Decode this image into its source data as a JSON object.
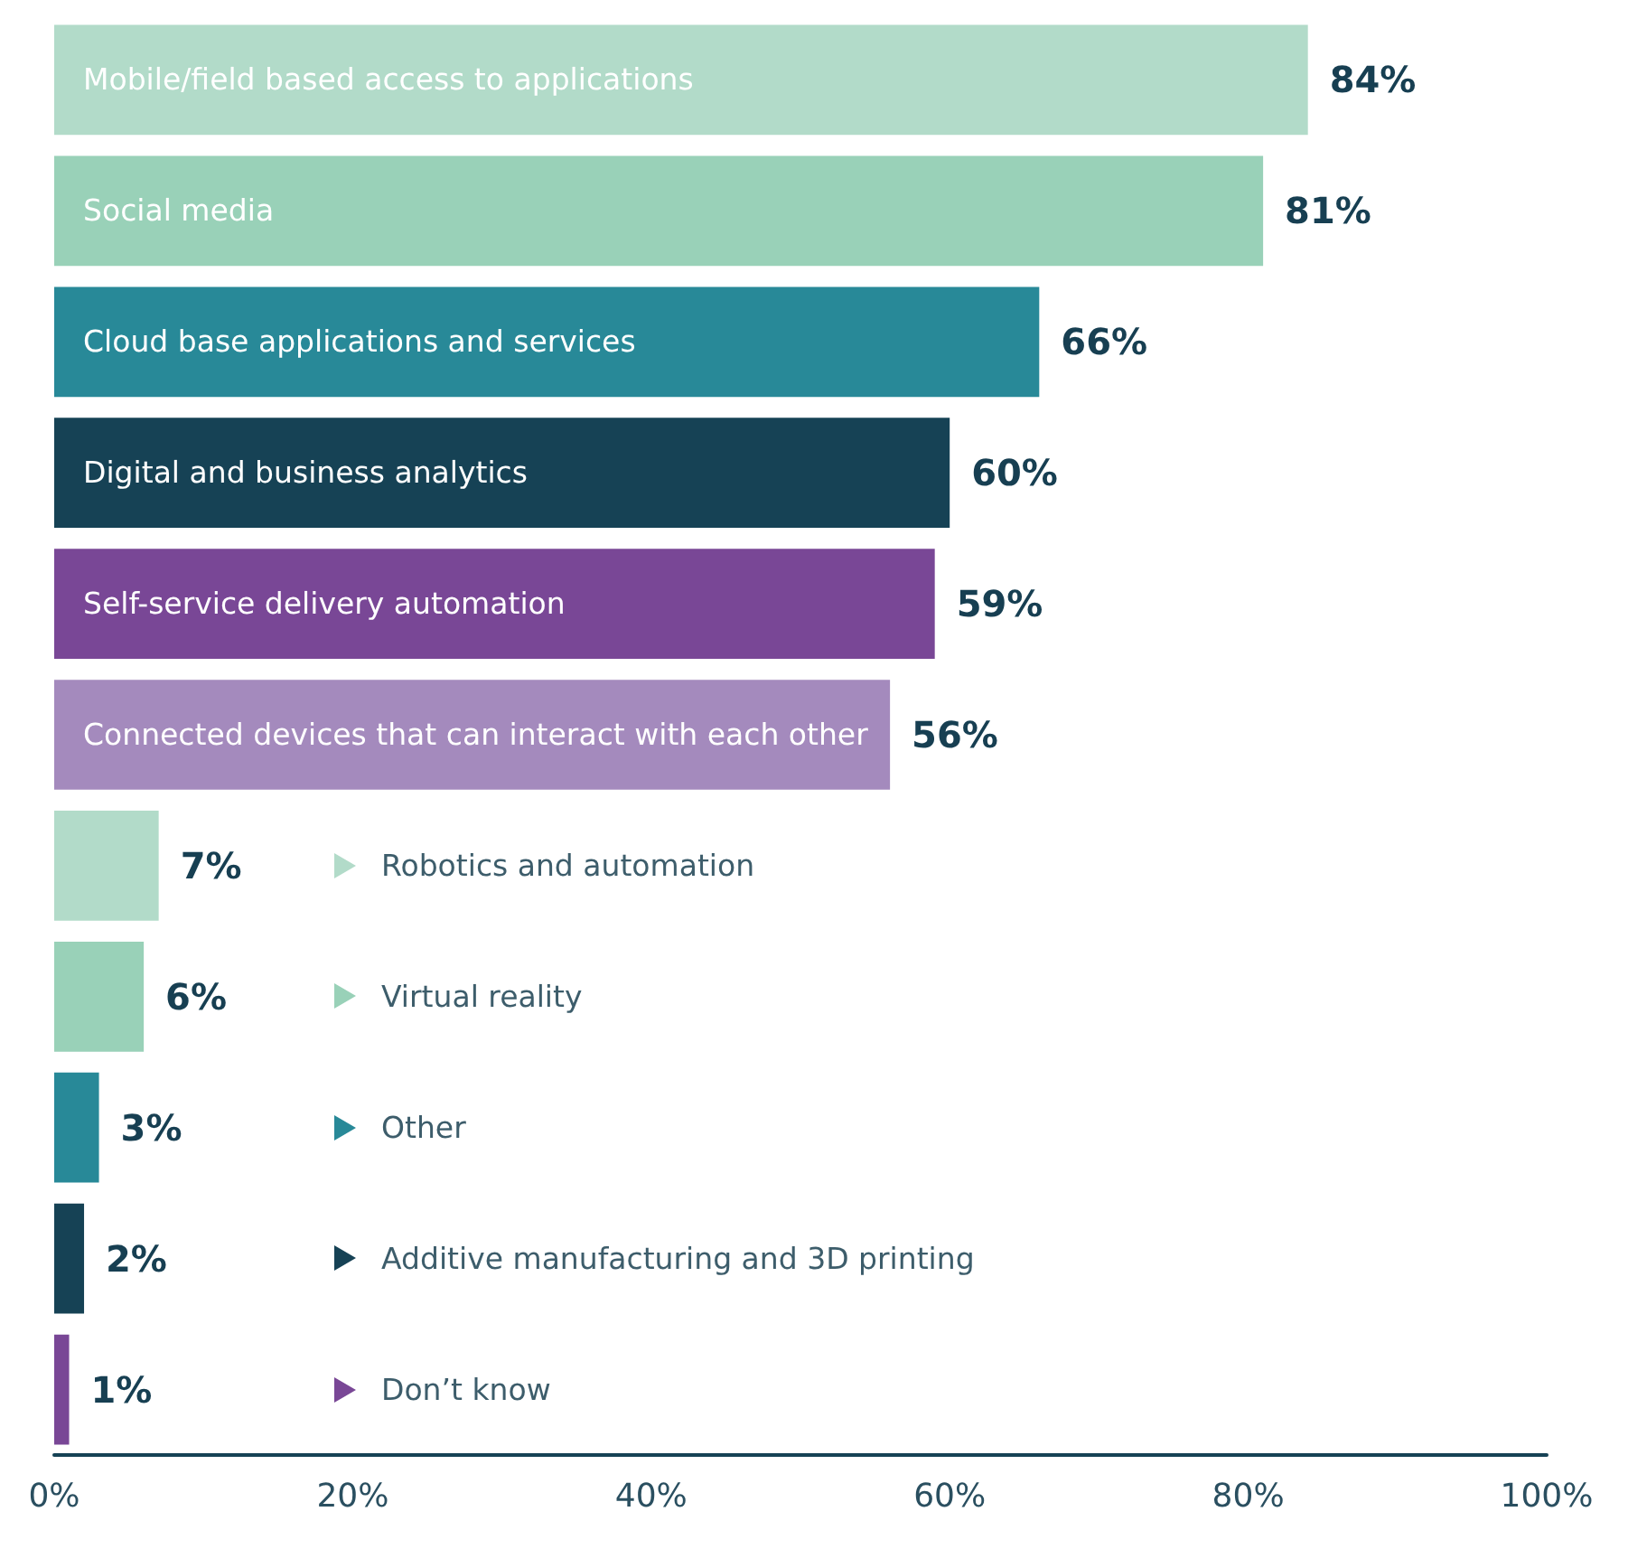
{
  "chart_data": {
    "type": "bar",
    "orientation": "horizontal",
    "categories": [
      "Mobile/field based access to applications",
      "Social media",
      "Cloud base applications and services",
      "Digital and business analytics",
      "Self-service delivery automation",
      "Connected devices that can interact with each other",
      "Robotics and automation",
      "Virtual reality",
      "Other",
      "Additive manufacturing and 3D printing",
      "Don’t know"
    ],
    "values": [
      84,
      81,
      66,
      60,
      59,
      56,
      7,
      6,
      3,
      2,
      1
    ],
    "value_labels": [
      "84%",
      "81%",
      "66%",
      "60%",
      "59%",
      "56%",
      "7%",
      "6%",
      "3%",
      "2%",
      "1%"
    ],
    "colors": [
      "#b2dbc9",
      "#99d1b8",
      "#288998",
      "#164255",
      "#794796",
      "#a48abd",
      "#b2dbc9",
      "#99d1b8",
      "#288998",
      "#164255",
      "#794796"
    ],
    "xlim": [
      0,
      100
    ],
    "xticks": [
      {
        "value": 0,
        "label": "0%"
      },
      {
        "value": 20,
        "label": "20%"
      },
      {
        "value": 40,
        "label": "40%"
      },
      {
        "value": 60,
        "label": "60%"
      },
      {
        "value": 80,
        "label": "80%"
      },
      {
        "value": 100,
        "label": "100%"
      }
    ],
    "grid": false
  }
}
